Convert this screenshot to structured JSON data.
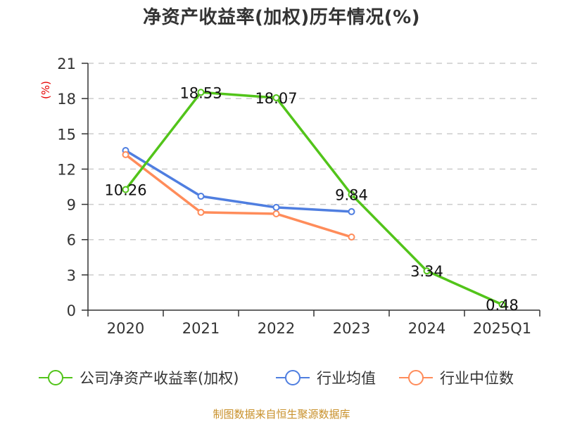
{
  "title": "净资产收益率(加权)历年情况(%)",
  "source": "制图数据来自恒生聚源数据库",
  "colors": {
    "company": "#52c41a",
    "industry_avg": "#4f7ee0",
    "industry_median": "#ff8c5a",
    "grid": "#cccccc",
    "axis": "#333333",
    "ylabel": "#e60000",
    "source": "#c8902a"
  },
  "chart_data": {
    "type": "line",
    "title": "净资产收益率(加权)历年情况(%)",
    "xlabel": "",
    "ylabel": "(%)",
    "categories": [
      "2020",
      "2021",
      "2022",
      "2023",
      "2024",
      "2025Q1"
    ],
    "ylim": [
      0,
      21
    ],
    "yticks": [
      0,
      3,
      6,
      9,
      12,
      15,
      18,
      21
    ],
    "grid": true,
    "legend_position": "bottom",
    "series": [
      {
        "name": "公司净资产收益率(加权)",
        "key": "company",
        "values": [
          10.26,
          18.53,
          18.07,
          9.84,
          3.34,
          0.48
        ],
        "labels": [
          "10.26",
          "18.53",
          "18.07",
          "9.84",
          "3.34",
          "0.48"
        ]
      },
      {
        "name": "行业均值",
        "key": "industry_avg",
        "values": [
          13.58,
          9.69,
          8.74,
          8.38,
          null,
          null
        ]
      },
      {
        "name": "行业中位数",
        "key": "industry_median",
        "values": [
          13.23,
          8.32,
          8.2,
          6.22,
          null,
          null
        ]
      }
    ]
  }
}
